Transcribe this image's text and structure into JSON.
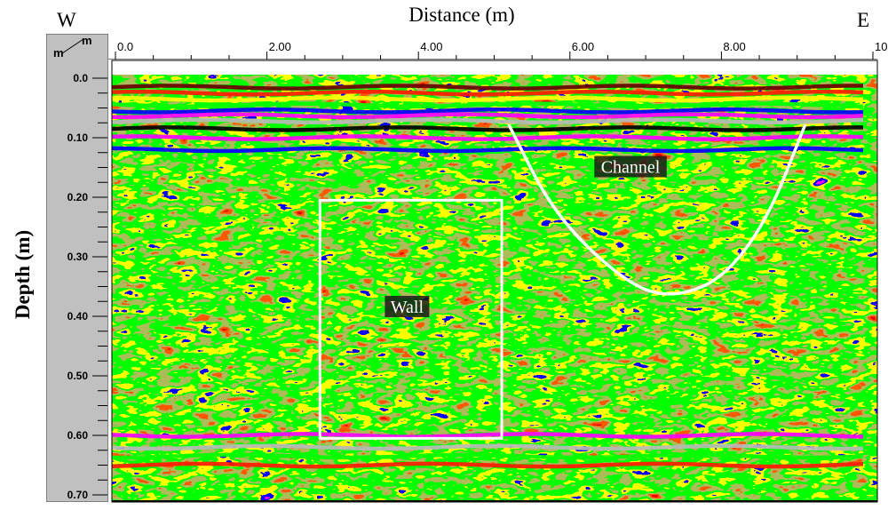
{
  "title": "Distance (m)",
  "west_label": "W",
  "east_label": "E",
  "ylabel": "Depth (m)",
  "corner_units": {
    "top": "m",
    "left": "m"
  },
  "chart_data": {
    "type": "heatmap",
    "description_free": true,
    "xlabel": "Distance (m)",
    "ylabel": "Depth (m)",
    "xlim": [
      0.0,
      10.0
    ],
    "ylim": [
      0.0,
      0.7
    ],
    "x_ticks": [
      {
        "value": 0.0,
        "label": "0.0"
      },
      {
        "value": 2.0,
        "label": "2.00"
      },
      {
        "value": 4.0,
        "label": "4.00"
      },
      {
        "value": 6.0,
        "label": "6.00"
      },
      {
        "value": 8.0,
        "label": "8.00"
      },
      {
        "value": 10.0,
        "label": "10"
      }
    ],
    "y_ticks": [
      {
        "value": 0.0,
        "label": "0.0"
      },
      {
        "value": 0.1,
        "label": "0.10"
      },
      {
        "value": 0.2,
        "label": "0.20"
      },
      {
        "value": 0.3,
        "label": "0.30"
      },
      {
        "value": 0.4,
        "label": "0.40"
      },
      {
        "value": 0.5,
        "label": "0.50"
      },
      {
        "value": 0.6,
        "label": "0.60"
      },
      {
        "value": 0.7,
        "label": "0.70"
      }
    ],
    "palette": [
      "#000000",
      "#7a0a0a",
      "#d40000",
      "#ff1a00",
      "#6b7f1a",
      "#00ff00",
      "#ffff00",
      "#0000ff",
      "#ff00ff",
      "#b8b8b8",
      "#ffffff"
    ],
    "bands": [
      {
        "depth": 0.015,
        "color": "#6b0000"
      },
      {
        "depth": 0.025,
        "color": "#ff1a00"
      },
      {
        "depth": 0.035,
        "color": "#ffff00"
      },
      {
        "depth": 0.045,
        "color": "#00ff00"
      },
      {
        "depth": 0.055,
        "color": "#0000ff"
      },
      {
        "depth": 0.063,
        "color": "#ff00ff"
      },
      {
        "depth": 0.072,
        "color": "#b8b8b8"
      },
      {
        "depth": 0.085,
        "color": "#000000"
      },
      {
        "depth": 0.1,
        "color": "#ff00ff"
      },
      {
        "depth": 0.12,
        "color": "#0000ff"
      },
      {
        "depth": 0.6,
        "color": "#ff00ff"
      },
      {
        "depth": 0.62,
        "color": "#b8b8b8"
      },
      {
        "depth": 0.635,
        "color": "#00ff00"
      },
      {
        "depth": 0.65,
        "color": "#ff1a00"
      }
    ],
    "annotations": [
      {
        "label": "Wall",
        "shape": "rectangle",
        "x_range": [
          2.7,
          5.1
        ],
        "depth_range": [
          0.205,
          0.605
        ],
        "label_x": 3.85,
        "label_depth": 0.385
      },
      {
        "label": "Channel",
        "shape": "curve",
        "points": [
          [
            5.2,
            0.08
          ],
          [
            5.8,
            0.23
          ],
          [
            6.7,
            0.34
          ],
          [
            7.3,
            0.37
          ],
          [
            8.0,
            0.34
          ],
          [
            8.6,
            0.24
          ],
          [
            9.1,
            0.08
          ]
        ],
        "label_x": 6.8,
        "label_depth": 0.15
      }
    ],
    "annotation_color": "#ffffff",
    "label_background": "#1a1a1a",
    "grid": false,
    "legend": "none"
  }
}
